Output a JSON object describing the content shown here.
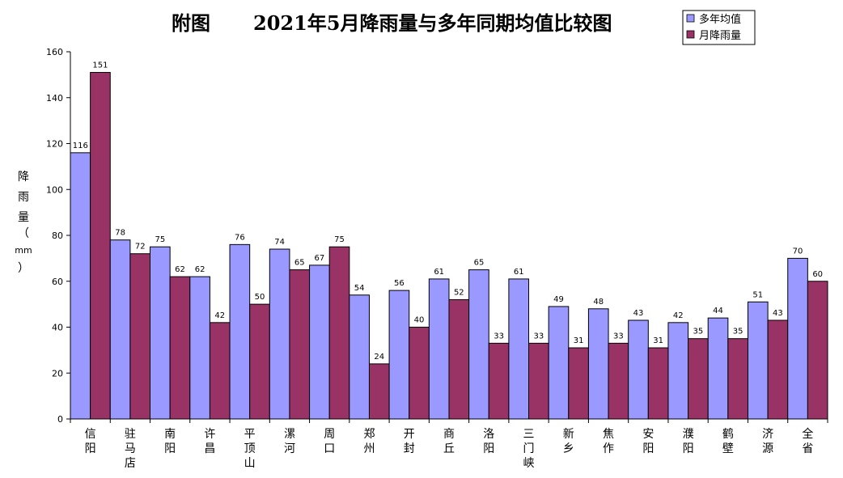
{
  "chart_data": {
    "type": "bar",
    "title_prefix": "附图",
    "title": "2021年5月降雨量与多年同期均值比较图",
    "ylabel": "降雨量（mm）",
    "ylim": [
      0,
      160
    ],
    "yticks": [
      "0",
      "20",
      "40",
      "60",
      "80",
      "100",
      "120",
      "140",
      "160"
    ],
    "legend_position": "top-right",
    "categories": [
      "信阳",
      "驻马店",
      "南阳",
      "许昌",
      "平顶山",
      "漯河",
      "周口",
      "郑州",
      "开封",
      "商丘",
      "洛阳",
      "三门峡",
      "新乡",
      "焦作",
      "安阳",
      "濮阳",
      "鹤壁",
      "济源",
      "全省"
    ],
    "series": [
      {
        "name": "多年均值",
        "color": "#9999ff",
        "values": [
          116,
          78,
          75,
          62,
          76,
          74,
          67,
          54,
          56,
          61,
          65,
          61,
          49,
          48,
          43,
          42,
          44,
          51,
          70
        ]
      },
      {
        "name": "月降雨量",
        "color": "#993366",
        "values": [
          151,
          72,
          62,
          42,
          50,
          65,
          75,
          24,
          40,
          52,
          33,
          33,
          31,
          33,
          31,
          35,
          35,
          43,
          60
        ]
      }
    ]
  }
}
